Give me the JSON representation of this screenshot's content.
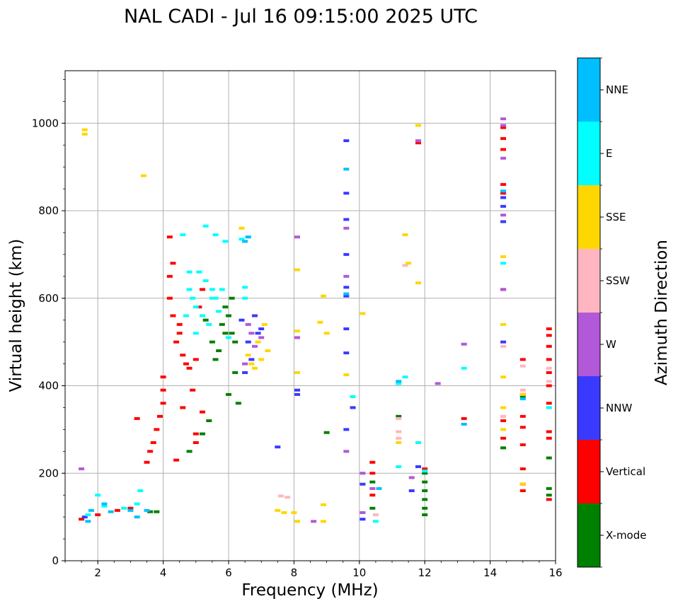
{
  "chart_data": {
    "type": "scatter",
    "title": "NAL CADI - Jul 16 09:15:00 2025 UTC",
    "xlabel": "Frequency (MHz)",
    "ylabel": "Virtual height (km)",
    "xlim": [
      1,
      16
    ],
    "ylim": [
      0,
      1120
    ],
    "x_ticks": [
      2,
      4,
      6,
      8,
      10,
      12,
      14,
      16
    ],
    "y_ticks": [
      0,
      200,
      400,
      600,
      800,
      1000
    ],
    "grid": true,
    "colorbar": {
      "label": "Azimuth Direction",
      "categories": [
        "X-mode",
        "Vertical",
        "NNW",
        "W",
        "SSW",
        "SSE",
        "E",
        "NNE"
      ],
      "colors": [
        "#008000",
        "#ff0000",
        "#3a3aff",
        "#b159d8",
        "#ffb6c1",
        "#ffd700",
        "#00ffff",
        "#00bfff"
      ]
    },
    "series": [
      {
        "name": "X-mode",
        "points": [
          [
            5.5,
            500
          ],
          [
            5.7,
            480
          ],
          [
            5.9,
            520
          ],
          [
            6.0,
            560
          ],
          [
            5.8,
            540
          ],
          [
            6.1,
            600
          ],
          [
            5.6,
            460
          ],
          [
            6.2,
            430
          ],
          [
            6.0,
            380
          ],
          [
            6.3,
            360
          ],
          [
            5.4,
            320
          ],
          [
            5.2,
            290
          ],
          [
            3.6,
            112
          ],
          [
            3.8,
            112
          ],
          [
            4.8,
            250
          ],
          [
            9.0,
            293
          ],
          [
            11.2,
            330
          ],
          [
            12.0,
            200
          ],
          [
            12.0,
            180
          ],
          [
            12.0,
            160
          ],
          [
            12.0,
            140
          ],
          [
            12.0,
            120
          ],
          [
            12.0,
            105
          ],
          [
            14.4,
            258
          ],
          [
            15.0,
            375
          ],
          [
            15.8,
            150
          ],
          [
            15.8,
            165
          ],
          [
            15.8,
            235
          ],
          [
            10.4,
            120
          ],
          [
            10.4,
            180
          ],
          [
            6.1,
            520
          ],
          [
            5.9,
            580
          ],
          [
            6.2,
            500
          ],
          [
            5.3,
            550
          ]
        ]
      },
      {
        "name": "Vertical",
        "points": [
          [
            4.0,
            420
          ],
          [
            4.0,
            390
          ],
          [
            4.0,
            360
          ],
          [
            3.9,
            330
          ],
          [
            3.8,
            300
          ],
          [
            3.7,
            270
          ],
          [
            3.6,
            250
          ],
          [
            3.5,
            225
          ],
          [
            4.4,
            230
          ],
          [
            4.2,
            650
          ],
          [
            4.2,
            600
          ],
          [
            4.3,
            560
          ],
          [
            4.5,
            520
          ],
          [
            4.6,
            470
          ],
          [
            4.7,
            450
          ],
          [
            4.8,
            440
          ],
          [
            5.0,
            460
          ],
          [
            4.4,
            500
          ],
          [
            4.5,
            540
          ],
          [
            5.1,
            580
          ],
          [
            5.2,
            620
          ],
          [
            4.3,
            680
          ],
          [
            4.2,
            740
          ],
          [
            4.6,
            350
          ],
          [
            5.2,
            340
          ],
          [
            5.0,
            290
          ],
          [
            5.0,
            270
          ],
          [
            4.9,
            390
          ],
          [
            1.5,
            95
          ],
          [
            2.0,
            105
          ],
          [
            2.6,
            115
          ],
          [
            3.0,
            120
          ],
          [
            15.0,
            160
          ],
          [
            15.0,
            175
          ],
          [
            15.0,
            210
          ],
          [
            15.0,
            265
          ],
          [
            15.0,
            305
          ],
          [
            15.0,
            330
          ],
          [
            15.0,
            380
          ],
          [
            15.0,
            460
          ],
          [
            15.8,
            140
          ],
          [
            15.8,
            280
          ],
          [
            15.8,
            295
          ],
          [
            15.8,
            360
          ],
          [
            15.8,
            400
          ],
          [
            15.8,
            430
          ],
          [
            15.8,
            460
          ],
          [
            15.8,
            490
          ],
          [
            15.8,
            515
          ],
          [
            15.8,
            530
          ],
          [
            14.4,
            280
          ],
          [
            14.4,
            320
          ],
          [
            14.4,
            840
          ],
          [
            14.4,
            860
          ],
          [
            14.4,
            940
          ],
          [
            14.4,
            965
          ],
          [
            14.4,
            990
          ],
          [
            14.4,
            620
          ],
          [
            13.2,
            325
          ],
          [
            12.0,
            210
          ],
          [
            10.4,
            150
          ],
          [
            10.4,
            200
          ],
          [
            10.4,
            225
          ],
          [
            11.8,
            955
          ],
          [
            3.2,
            325
          ]
        ]
      },
      {
        "name": "NNW",
        "points": [
          [
            6.6,
            500
          ],
          [
            6.8,
            560
          ],
          [
            7.0,
            530
          ],
          [
            6.5,
            430
          ],
          [
            6.7,
            460
          ],
          [
            6.9,
            520
          ],
          [
            6.4,
            550
          ],
          [
            9.6,
            300
          ],
          [
            9.6,
            475
          ],
          [
            9.6,
            530
          ],
          [
            9.6,
            605
          ],
          [
            9.6,
            625
          ],
          [
            9.6,
            700
          ],
          [
            9.6,
            780
          ],
          [
            9.6,
            840
          ],
          [
            9.6,
            960
          ],
          [
            10.1,
            95
          ],
          [
            10.1,
            175
          ],
          [
            11.6,
            160
          ],
          [
            11.8,
            215
          ],
          [
            14.4,
            775
          ],
          [
            14.4,
            810
          ],
          [
            14.4,
            830
          ],
          [
            14.4,
            500
          ],
          [
            8.1,
            380
          ],
          [
            8.1,
            390
          ],
          [
            1.6,
            100
          ],
          [
            7.5,
            260
          ],
          [
            9.8,
            350
          ]
        ]
      },
      {
        "name": "W",
        "points": [
          [
            6.6,
            540
          ],
          [
            6.7,
            520
          ],
          [
            7.0,
            510
          ],
          [
            6.5,
            450
          ],
          [
            6.8,
            490
          ],
          [
            14.4,
            1010
          ],
          [
            14.4,
            995
          ],
          [
            14.4,
            920
          ],
          [
            14.4,
            790
          ],
          [
            14.4,
            620
          ],
          [
            13.2,
            495
          ],
          [
            12.4,
            405
          ],
          [
            11.6,
            190
          ],
          [
            10.1,
            110
          ],
          [
            10.1,
            200
          ],
          [
            10.4,
            165
          ],
          [
            8.1,
            510
          ],
          [
            8.1,
            740
          ],
          [
            8.6,
            90
          ],
          [
            9.6,
            250
          ],
          [
            9.6,
            650
          ],
          [
            9.6,
            760
          ],
          [
            11.8,
            960
          ],
          [
            1.5,
            210
          ]
        ]
      },
      {
        "name": "SSW",
        "points": [
          [
            11.2,
            280
          ],
          [
            11.2,
            295
          ],
          [
            15.0,
            445
          ],
          [
            15.8,
            440
          ],
          [
            15.8,
            410
          ],
          [
            15.0,
            390
          ],
          [
            7.6,
            148
          ],
          [
            7.8,
            145
          ],
          [
            10.5,
            105
          ],
          [
            11.2,
            325
          ],
          [
            14.4,
            330
          ],
          [
            11.4,
            675
          ],
          [
            14.4,
            490
          ]
        ]
      },
      {
        "name": "SSE",
        "points": [
          [
            6.8,
            440
          ],
          [
            7.0,
            460
          ],
          [
            7.2,
            480
          ],
          [
            6.9,
            500
          ],
          [
            7.1,
            540
          ],
          [
            6.7,
            450
          ],
          [
            6.6,
            470
          ],
          [
            6.4,
            760
          ],
          [
            8.1,
            430
          ],
          [
            8.1,
            525
          ],
          [
            8.1,
            665
          ],
          [
            8.8,
            545
          ],
          [
            8.9,
            605
          ],
          [
            9.0,
            520
          ],
          [
            9.6,
            425
          ],
          [
            10.1,
            565
          ],
          [
            11.2,
            270
          ],
          [
            11.4,
            745
          ],
          [
            11.5,
            680
          ],
          [
            11.8,
            635
          ],
          [
            11.8,
            995
          ],
          [
            14.4,
            540
          ],
          [
            14.4,
            420
          ],
          [
            14.4,
            350
          ],
          [
            14.4,
            300
          ],
          [
            14.4,
            695
          ],
          [
            15.0,
            380
          ],
          [
            15.0,
            175
          ],
          [
            7.5,
            115
          ],
          [
            7.7,
            110
          ],
          [
            8.0,
            110
          ],
          [
            8.1,
            90
          ],
          [
            8.9,
            90
          ],
          [
            8.9,
            128
          ],
          [
            3.4,
            880
          ],
          [
            1.6,
            985
          ],
          [
            1.6,
            975
          ]
        ]
      },
      {
        "name": "E",
        "points": [
          [
            4.8,
            620
          ],
          [
            5.0,
            580
          ],
          [
            5.2,
            560
          ],
          [
            5.4,
            540
          ],
          [
            5.6,
            600
          ],
          [
            5.8,
            620
          ],
          [
            5.1,
            660
          ],
          [
            5.3,
            640
          ],
          [
            5.5,
            620
          ],
          [
            4.9,
            600
          ],
          [
            5.7,
            570
          ],
          [
            5.0,
            520
          ],
          [
            4.7,
            560
          ],
          [
            4.8,
            660
          ],
          [
            6.0,
            510
          ],
          [
            6.5,
            600
          ],
          [
            6.5,
            625
          ],
          [
            6.6,
            740
          ],
          [
            6.4,
            735
          ],
          [
            5.9,
            730
          ],
          [
            5.6,
            745
          ],
          [
            5.3,
            765
          ],
          [
            4.6,
            745
          ],
          [
            5.5,
            600
          ],
          [
            1.7,
            105
          ],
          [
            2.2,
            125
          ],
          [
            2.8,
            120
          ],
          [
            3.2,
            130
          ],
          [
            3.3,
            160
          ],
          [
            2.0,
            150
          ],
          [
            13.2,
            440
          ],
          [
            11.4,
            420
          ],
          [
            11.2,
            405
          ],
          [
            11.2,
            215
          ],
          [
            11.8,
            270
          ],
          [
            10.5,
            90
          ],
          [
            9.8,
            375
          ],
          [
            14.4,
            680
          ],
          [
            15.8,
            350
          ],
          [
            12.0,
            205
          ]
        ]
      },
      {
        "name": "NNE",
        "points": [
          [
            6.5,
            730
          ],
          [
            6.6,
            740
          ],
          [
            2.2,
            130
          ],
          [
            1.8,
            115
          ],
          [
            2.4,
            112
          ],
          [
            3.0,
            115
          ],
          [
            3.5,
            115
          ],
          [
            3.2,
            100
          ],
          [
            1.7,
            90
          ],
          [
            9.6,
            610
          ],
          [
            9.6,
            895
          ],
          [
            13.2,
            312
          ],
          [
            10.6,
            165
          ],
          [
            15.0,
            370
          ],
          [
            14.4,
            845
          ],
          [
            11.2,
            410
          ]
        ]
      }
    ]
  }
}
